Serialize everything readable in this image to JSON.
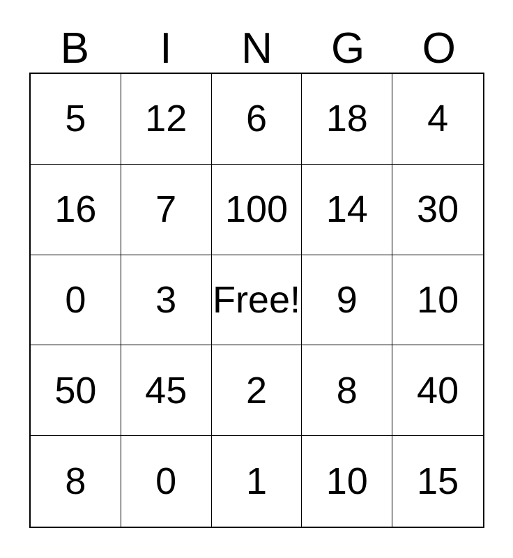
{
  "card": {
    "title": "BINGO",
    "header": {
      "letters": [
        "B",
        "I",
        "N",
        "G",
        "O"
      ]
    },
    "grid": {
      "rows": [
        [
          "5",
          "12",
          "6",
          "18",
          "4"
        ],
        [
          "16",
          "7",
          "100",
          "14",
          "30"
        ],
        [
          "0",
          "3",
          "Free!",
          "9",
          "10"
        ],
        [
          "50",
          "45",
          "2",
          "8",
          "40"
        ],
        [
          "8",
          "0",
          "1",
          "10",
          "15"
        ]
      ],
      "free_cell": {
        "row": 2,
        "col": 2,
        "label": "Free!"
      }
    },
    "colors": {
      "background": "#ffffff",
      "text": "#000000",
      "border": "#000000"
    }
  }
}
